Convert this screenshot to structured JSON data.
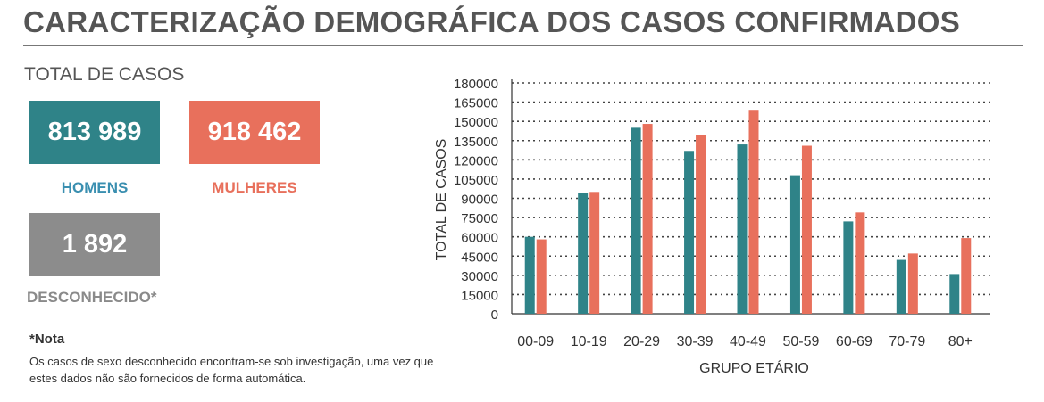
{
  "header": {
    "title": "CARACTERIZAÇÃO DEMOGRÁFICA DOS CASOS CONFIRMADOS"
  },
  "totals": {
    "section_label": "TOTAL DE CASOS",
    "homens": {
      "value": "813 989",
      "label": "HOMENS"
    },
    "mulheres": {
      "value": "918 462",
      "label": "MULHERES"
    },
    "desconhecido": {
      "value": "1 892",
      "label": "DESCONHECIDO*"
    }
  },
  "note": {
    "title": "*Nota",
    "text": "Os casos de sexo desconhecido encontram-se sob investigação, uma vez que estes dados não são fornecidos de forma automática."
  },
  "colors": {
    "homens": "#2f8388",
    "mulheres": "#e8705c",
    "desconhecido": "#8c8c8c",
    "text": "#555555"
  },
  "chart_data": {
    "type": "bar",
    "xlabel": "GRUPO ETÁRIO",
    "ylabel": "TOTAL DE CASOS",
    "ylim": [
      0,
      180000
    ],
    "yticks": [
      0,
      15000,
      30000,
      45000,
      60000,
      75000,
      90000,
      105000,
      120000,
      135000,
      150000,
      165000,
      180000
    ],
    "grid": true,
    "categories": [
      "00-09",
      "10-19",
      "20-29",
      "30-39",
      "40-49",
      "50-59",
      "60-69",
      "70-79",
      "80+"
    ],
    "series": [
      {
        "values": [
          60000,
          94000,
          145000,
          127000,
          132000,
          108000,
          72000,
          42000,
          31000
        ]
      },
      {
        "values": [
          58000,
          95000,
          148000,
          139000,
          159000,
          131000,
          79000,
          47000,
          59000
        ]
      }
    ]
  }
}
